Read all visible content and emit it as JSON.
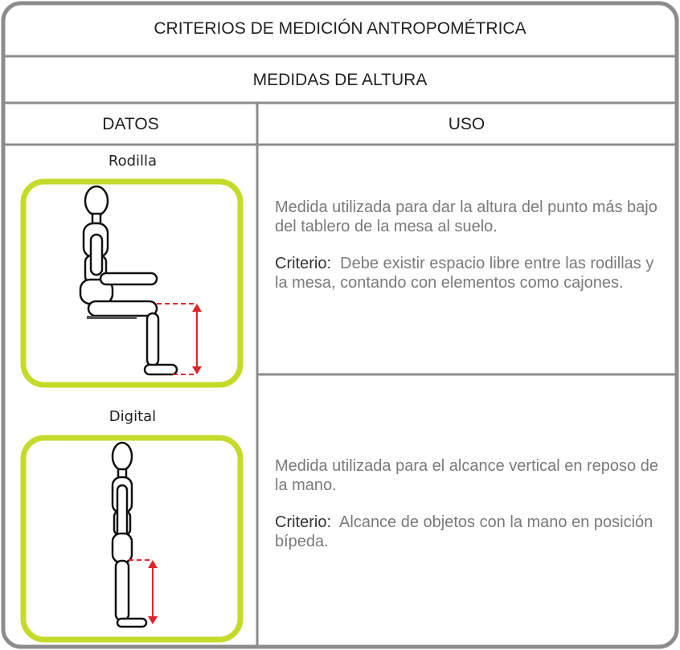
{
  "header": {
    "title": "CRITERIOS DE MEDICIÓN ANTROPOMÉTRICA",
    "subtitle": "MEDIDAS DE ALTURA"
  },
  "columns": [
    "DATOS",
    "USO"
  ],
  "rows": [
    {
      "label": "Rodilla",
      "description": "Medida utilizada para dar la altura del punto más bajo del tablero de la mesa al suelo.",
      "criterion_label": "Criterio:",
      "criterion": "Debe existir espacio libre entre las rodillas y la mesa, contando con elementos como cajones."
    },
    {
      "label": "Digital",
      "description": "Medida utilizada para el alcance vertical en reposo de la mano.",
      "criterion_label": "Criterio:",
      "criterion": "Alcance de objetos con la mano en posición bípeda."
    }
  ]
}
